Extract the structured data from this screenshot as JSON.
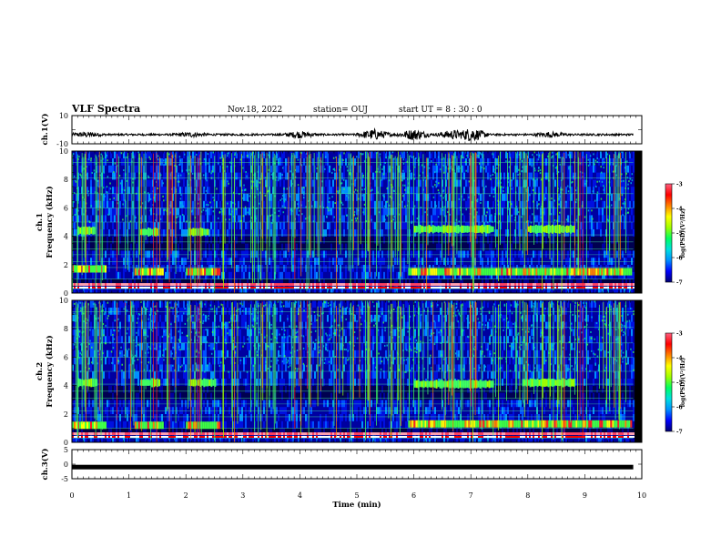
{
  "header": {
    "title": "VLF Spectra",
    "date": "Nov.18, 2022",
    "station": "station= OUJ",
    "start": "start  UT =   8  : 30 : 0"
  },
  "chart_data": [
    {
      "type": "line",
      "name": "ch1-waveform",
      "ylabel": "ch.1(V)",
      "ylim": [
        -10,
        10
      ],
      "ytick_labels": [
        "10",
        "-10"
      ],
      "baseline": -3.5,
      "bursts": [
        {
          "t": 0.25,
          "amp": 1.5
        },
        {
          "t": 2.1,
          "amp": 1.3
        },
        {
          "t": 4.0,
          "amp": 2.0
        },
        {
          "t": 5.3,
          "amp": 3.5
        },
        {
          "t": 6.0,
          "amp": 3.5
        },
        {
          "t": 6.7,
          "amp": 3.0
        },
        {
          "t": 7.0,
          "amp": 4.5
        },
        {
          "t": 8.4,
          "amp": 1.5
        }
      ]
    },
    {
      "type": "heatmap",
      "name": "ch1-spectrogram",
      "ylabel_line1": "ch.1",
      "ylabel_line2": "Frequency  (kHz)",
      "ylim": [
        0,
        10
      ],
      "ytick_labels": [
        "0",
        "2",
        "4",
        "6",
        "8",
        "10"
      ],
      "chorus_bands": [
        {
          "t0": 0.1,
          "t1": 0.4,
          "f": 4.4
        },
        {
          "t0": 1.2,
          "t1": 1.5,
          "f": 4.3
        },
        {
          "t0": 2.05,
          "t1": 2.4,
          "f": 4.3
        },
        {
          "t0": 6.0,
          "t1": 7.4,
          "f": 4.5
        },
        {
          "t0": 8.0,
          "t1": 8.8,
          "f": 4.5
        }
      ],
      "low_bands": [
        {
          "t0": 0.0,
          "t1": 0.6,
          "f": 1.7
        },
        {
          "t0": 1.1,
          "t1": 1.6,
          "f": 1.5
        },
        {
          "t0": 2.0,
          "t1": 2.6,
          "f": 1.5
        },
        {
          "t0": 5.9,
          "t1": 9.8,
          "f": 1.5
        }
      ],
      "colorbar": {
        "label": "log(PSD)(V²/Hz)",
        "range": [
          -7,
          -3
        ],
        "tick_labels": [
          "-3",
          "-4",
          "-5",
          "-6",
          "-7"
        ]
      }
    },
    {
      "type": "heatmap",
      "name": "ch2-spectrogram",
      "ylabel_line1": "ch.2",
      "ylabel_line2": "Frequency  (kHz)",
      "ylim": [
        0,
        10
      ],
      "ytick_labels": [
        "0",
        "2",
        "4",
        "6",
        "8",
        "10"
      ],
      "chorus_bands": [
        {
          "t0": 0.1,
          "t1": 0.45,
          "f": 4.2
        },
        {
          "t0": 1.2,
          "t1": 1.55,
          "f": 4.2
        },
        {
          "t0": 2.05,
          "t1": 2.5,
          "f": 4.2
        },
        {
          "t0": 6.0,
          "t1": 7.4,
          "f": 4.1
        },
        {
          "t0": 7.9,
          "t1": 8.8,
          "f": 4.2
        }
      ],
      "low_bands": [
        {
          "t0": 0.0,
          "t1": 0.6,
          "f": 1.2
        },
        {
          "t0": 1.1,
          "t1": 1.6,
          "f": 1.2
        },
        {
          "t0": 2.0,
          "t1": 2.6,
          "f": 1.2
        },
        {
          "t0": 5.9,
          "t1": 9.8,
          "f": 1.3
        }
      ],
      "colorbar": {
        "label": "log(PSD)(V²/Hz)",
        "range": [
          -7,
          -3
        ],
        "tick_labels": [
          "-3",
          "-4",
          "-5",
          "-6",
          "-7"
        ]
      }
    },
    {
      "type": "line",
      "name": "ch3-waveform",
      "ylabel": "ch.3(V)",
      "ylim": [
        -5,
        5
      ],
      "ytick_labels": [
        "5",
        "0",
        "-5"
      ],
      "baseline": -1.0,
      "bursts": []
    }
  ],
  "xaxis": {
    "label": "Time  (min)",
    "xlim": [
      0,
      10
    ],
    "data_end": 9.85,
    "tick_labels": [
      "0",
      "1",
      "2",
      "3",
      "4",
      "5",
      "6",
      "7",
      "8",
      "9",
      "10"
    ]
  },
  "colors": {
    "scale": [
      "#000070",
      "#0000ff",
      "#0090ff",
      "#00e0e0",
      "#00ff60",
      "#a0ff00",
      "#ffff00",
      "#ff8000",
      "#ff0000",
      "#ff6080",
      "#ffe0e8",
      "#ffffff"
    ]
  }
}
